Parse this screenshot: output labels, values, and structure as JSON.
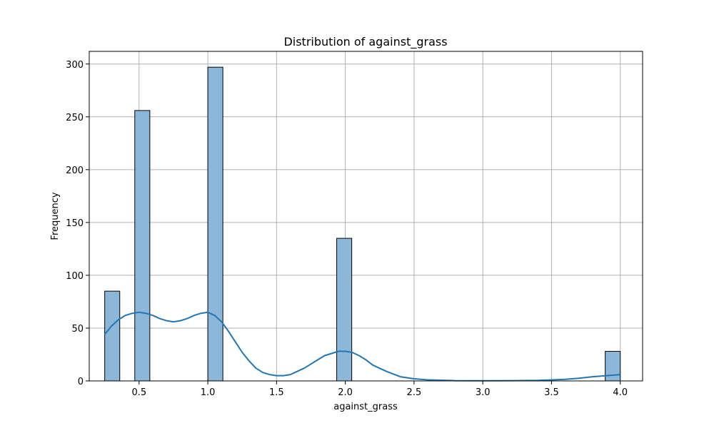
{
  "chart_data": {
    "type": "bar",
    "title": "Distribution of against_grass",
    "xlabel": "against_grass",
    "ylabel": "Frequency",
    "xlim": [
      0.1375,
      4.1625
    ],
    "ylim": [
      0,
      312
    ],
    "xticks": [
      0.5,
      1.0,
      1.5,
      2.0,
      2.5,
      3.0,
      3.5,
      4.0
    ],
    "xtick_labels": [
      "0.5",
      "1.0",
      "1.5",
      "2.0",
      "2.5",
      "3.0",
      "3.5",
      "4.0"
    ],
    "yticks": [
      0,
      50,
      100,
      150,
      200,
      250,
      300
    ],
    "ytick_labels": [
      "0",
      "50",
      "100",
      "150",
      "200",
      "250",
      "300"
    ],
    "grid": true,
    "bars": [
      {
        "x0": 0.25,
        "x1": 0.3594,
        "value": 85
      },
      {
        "x0": 0.4688,
        "x1": 0.5781,
        "value": 256
      },
      {
        "x0": 1.0,
        "x1": 1.1094,
        "value": 297
      },
      {
        "x0": 1.9375,
        "x1": 2.0469,
        "value": 135
      },
      {
        "x0": 3.8906,
        "x1": 4.0,
        "value": 28
      }
    ],
    "kde": {
      "x": [
        0.25,
        0.3,
        0.35,
        0.4,
        0.45,
        0.5,
        0.55,
        0.6,
        0.65,
        0.7,
        0.75,
        0.8,
        0.85,
        0.9,
        0.95,
        1.0,
        1.05,
        1.1,
        1.15,
        1.2,
        1.25,
        1.3,
        1.35,
        1.4,
        1.45,
        1.5,
        1.55,
        1.6,
        1.65,
        1.7,
        1.75,
        1.8,
        1.85,
        1.9,
        1.95,
        2.0,
        2.05,
        2.1,
        2.15,
        2.2,
        2.3,
        2.4,
        2.5,
        2.6,
        2.8,
        3.0,
        3.2,
        3.4,
        3.6,
        3.7,
        3.8,
        3.9,
        4.0
      ],
      "y": [
        44,
        52,
        58,
        62,
        64,
        65,
        64,
        62,
        59,
        57,
        56,
        57,
        59,
        62,
        64,
        65,
        62,
        56,
        47,
        37,
        27,
        19,
        12,
        8,
        6,
        5,
        5,
        6,
        9,
        12,
        16,
        20,
        24,
        26,
        28,
        28,
        27,
        24,
        20,
        15,
        9,
        4,
        2,
        1,
        0.3,
        0.2,
        0.3,
        0.5,
        1.5,
        2.5,
        4,
        5,
        6
      ]
    },
    "colors": {
      "bar_fill": "#8db7d8",
      "bar_edge": "#000000",
      "kde_line": "#1f77b4",
      "grid": "#b0b0b0"
    }
  }
}
